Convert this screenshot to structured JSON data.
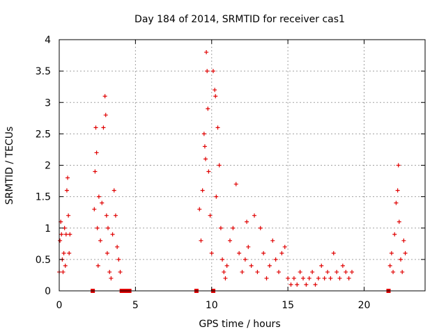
{
  "chart_data": {
    "type": "scatter",
    "title": "Day 184 of 2014, SRMTID for receiver cas1",
    "xlabel": "GPS time / hours",
    "ylabel": "SRMTID / TECUs",
    "xlim": [
      0,
      24
    ],
    "ylim": [
      0,
      4
    ],
    "xticks": [
      0,
      5,
      10,
      15,
      20
    ],
    "yticks": [
      0,
      0.5,
      1,
      1.5,
      2,
      2.5,
      3,
      3.5,
      4
    ],
    "grid": true,
    "marker": "+",
    "color": "#e00000",
    "zero_markers": [
      2.2,
      4.1,
      4.2,
      4.3,
      4.4,
      4.5,
      4.6,
      9.0,
      10.1,
      21.6
    ],
    "series": [
      {
        "name": "SRMTID",
        "x": [
          0.0,
          0.05,
          0.1,
          0.15,
          0.2,
          0.25,
          0.3,
          0.35,
          0.4,
          0.45,
          0.5,
          0.55,
          0.6,
          0.65,
          0.7,
          2.3,
          2.35,
          2.4,
          2.45,
          2.5,
          2.55,
          2.6,
          2.7,
          2.8,
          2.9,
          3.0,
          3.05,
          3.1,
          3.15,
          3.2,
          3.3,
          3.4,
          3.5,
          3.6,
          3.7,
          3.8,
          3.9,
          4.0,
          9.2,
          9.3,
          9.4,
          9.5,
          9.55,
          9.6,
          9.65,
          9.7,
          9.75,
          9.8,
          9.9,
          10.0,
          10.1,
          10.2,
          10.25,
          10.3,
          10.4,
          10.5,
          10.6,
          10.7,
          10.8,
          10.9,
          11.0,
          11.2,
          11.4,
          11.6,
          11.8,
          12.0,
          12.2,
          12.3,
          12.4,
          12.6,
          12.8,
          13.0,
          13.2,
          13.4,
          13.6,
          13.8,
          14.0,
          14.2,
          14.4,
          14.6,
          14.8,
          15.0,
          15.2,
          15.4,
          15.6,
          15.8,
          16.0,
          16.2,
          16.4,
          16.6,
          16.8,
          17.0,
          17.2,
          17.4,
          17.6,
          17.8,
          18.0,
          18.2,
          18.4,
          18.6,
          18.8,
          19.0,
          19.2,
          21.7,
          21.8,
          21.9,
          22.0,
          22.1,
          22.2,
          22.25,
          22.3,
          22.4,
          22.5,
          22.6,
          22.7
        ],
        "values": [
          0.3,
          0.8,
          1.1,
          0.9,
          0.5,
          0.3,
          0.6,
          1.0,
          0.4,
          0.9,
          1.6,
          1.8,
          1.2,
          0.6,
          0.9,
          1.3,
          1.9,
          2.6,
          2.2,
          1.0,
          0.4,
          1.5,
          0.8,
          1.4,
          2.6,
          3.1,
          2.8,
          1.2,
          0.6,
          1.0,
          0.3,
          0.2,
          0.9,
          1.6,
          1.2,
          0.7,
          0.5,
          0.3,
          1.3,
          0.8,
          1.6,
          2.5,
          2.3,
          2.1,
          3.8,
          3.5,
          2.9,
          1.9,
          1.2,
          0.6,
          3.5,
          3.2,
          3.1,
          1.5,
          2.6,
          2.0,
          1.0,
          0.5,
          0.3,
          0.2,
          0.4,
          0.8,
          1.0,
          1.7,
          0.6,
          0.3,
          0.5,
          1.1,
          0.7,
          0.4,
          1.2,
          0.3,
          1.0,
          0.6,
          0.2,
          0.4,
          0.8,
          0.5,
          0.3,
          0.6,
          0.7,
          0.2,
          0.1,
          0.2,
          0.1,
          0.3,
          0.2,
          0.1,
          0.2,
          0.3,
          0.1,
          0.2,
          0.4,
          0.2,
          0.3,
          0.2,
          0.6,
          0.3,
          0.2,
          0.4,
          0.3,
          0.2,
          0.3,
          0.4,
          0.6,
          0.3,
          0.9,
          1.4,
          1.6,
          2.0,
          1.1,
          0.5,
          0.3,
          0.8,
          0.6
        ]
      }
    ]
  }
}
